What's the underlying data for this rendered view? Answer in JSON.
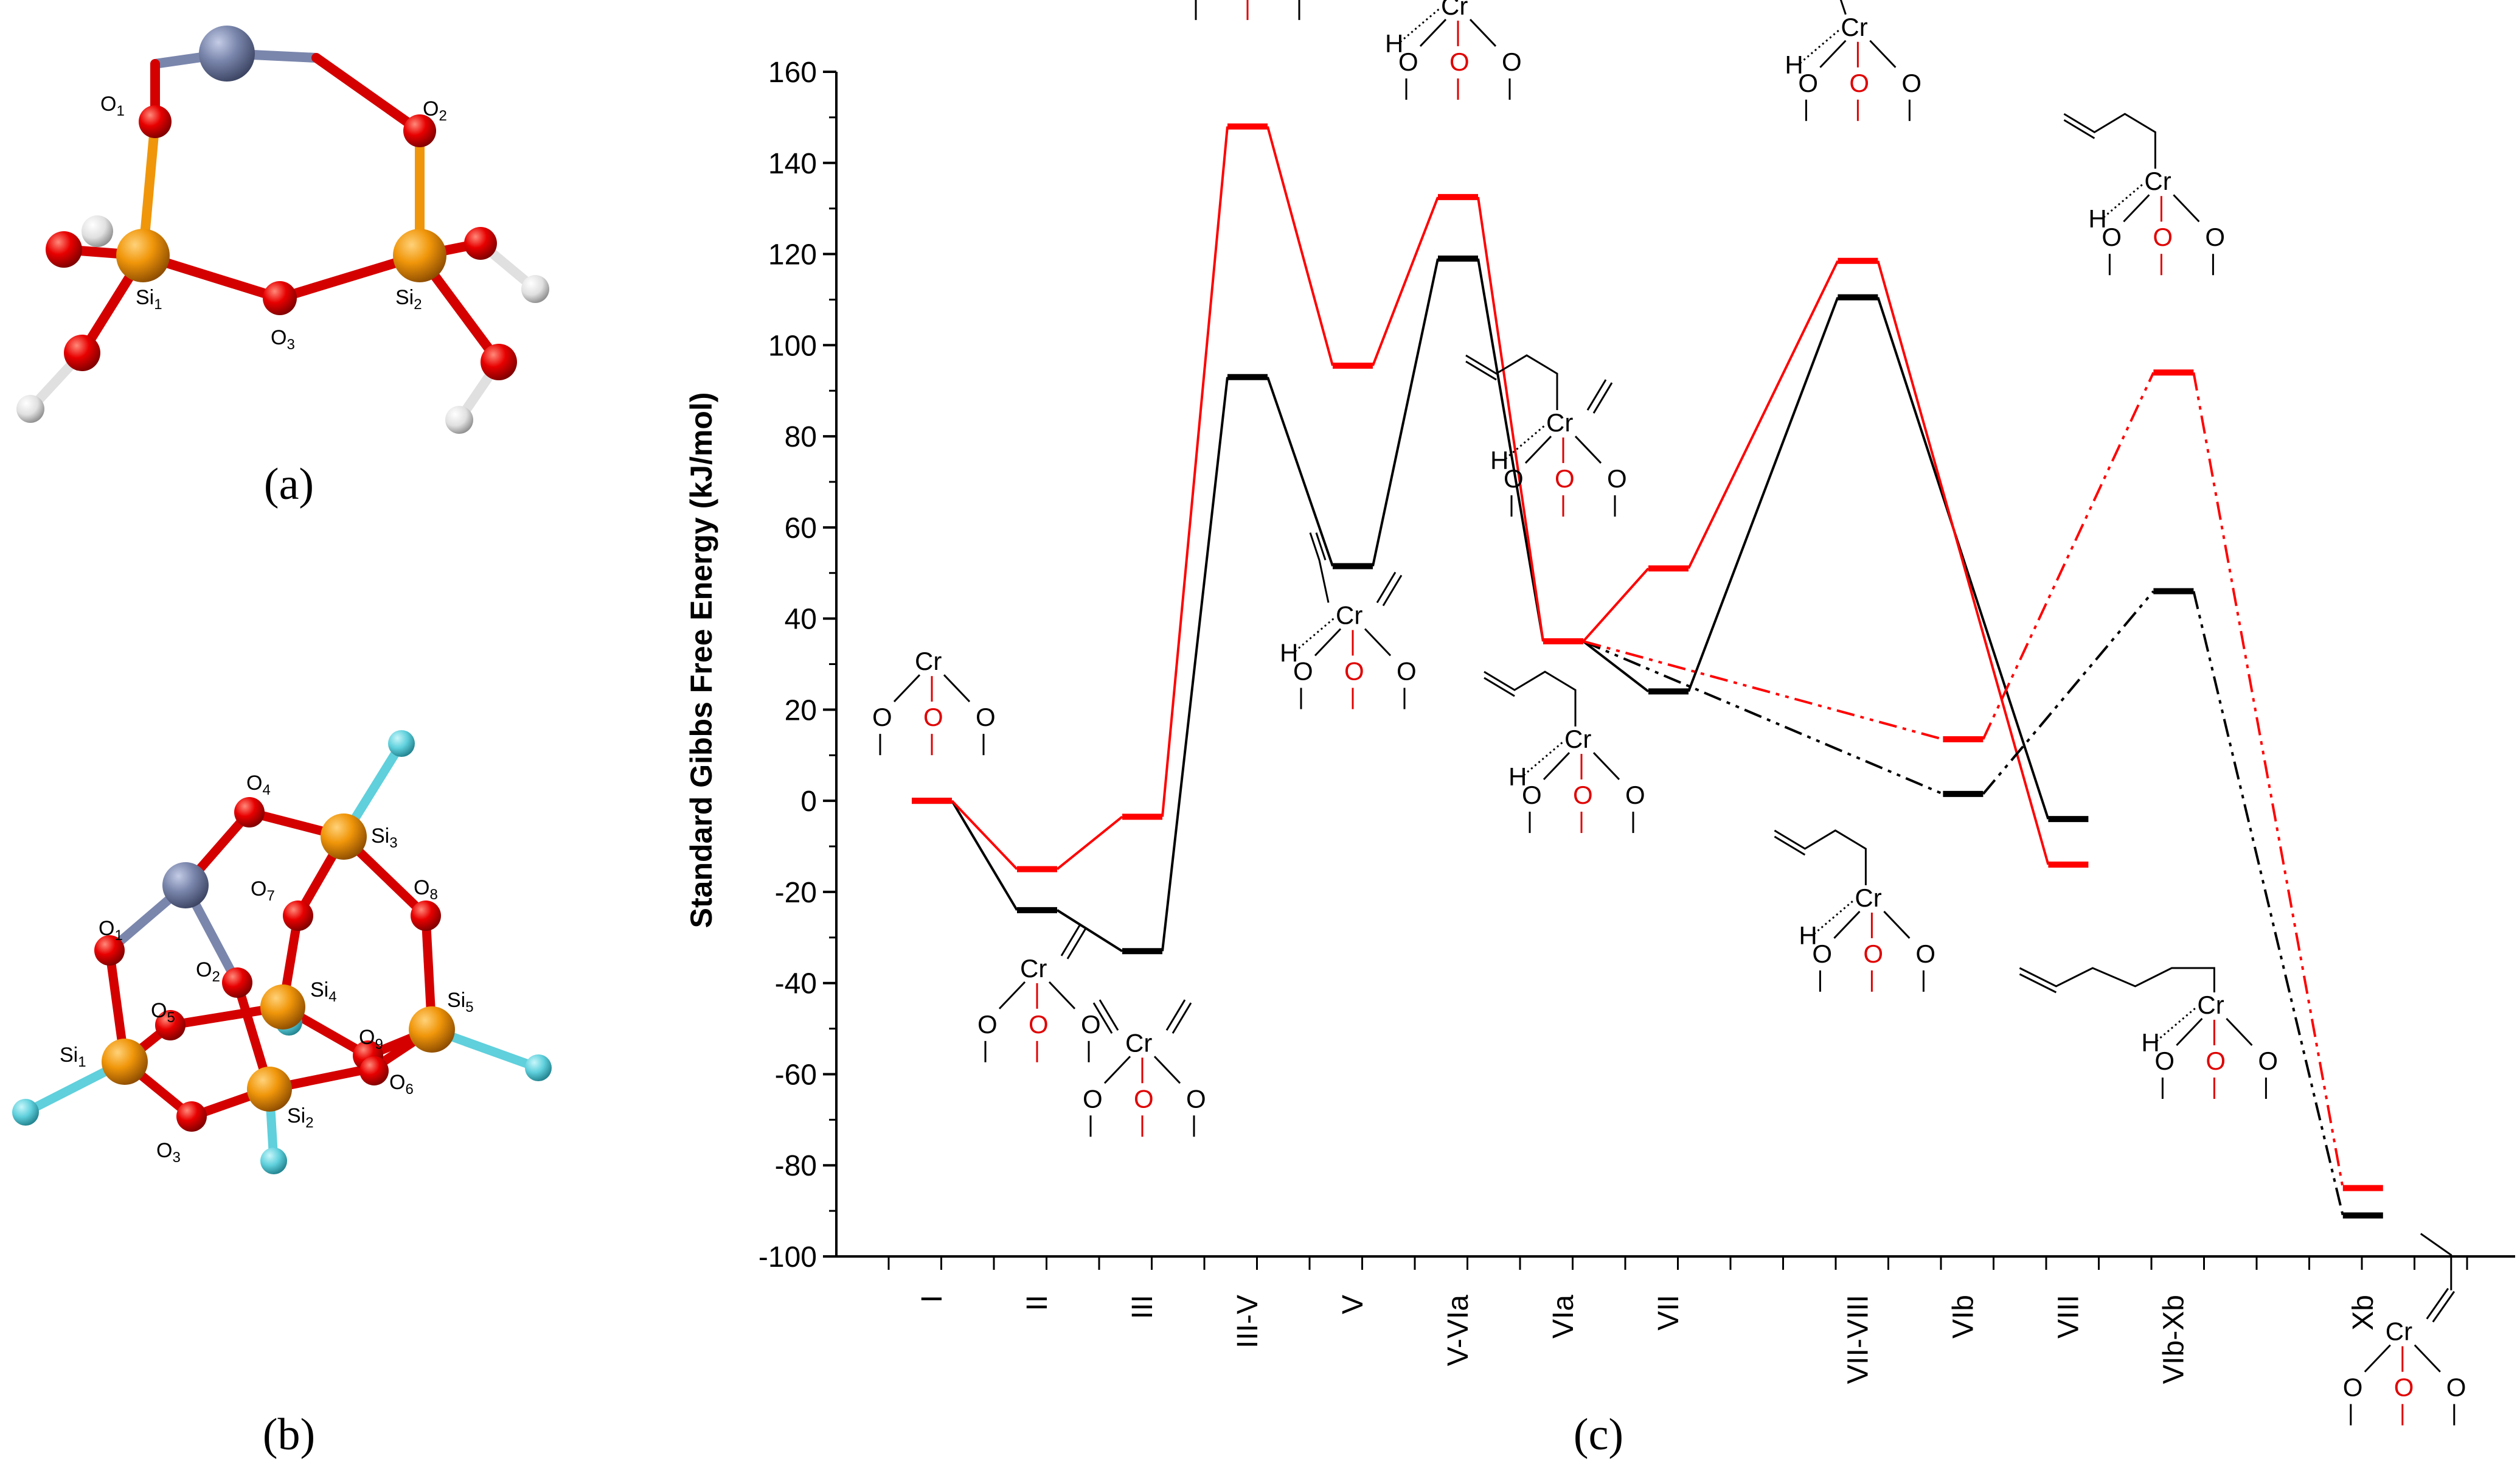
{
  "panels": {
    "a": "(a)",
    "b": "(b)",
    "c": "(c)"
  },
  "colors": {
    "red": "#ff0000",
    "black": "#000000",
    "oxygen": "#e80000",
    "silicon": "#f0960a",
    "metal": "#7a86ac",
    "hydrogen": "#e8e8e8",
    "fluorine": "#5fd0dc",
    "bond_red": "#d40000"
  },
  "molecule_a": {
    "atoms": [
      {
        "label": "O1",
        "base": "O",
        "sub": "1"
      },
      {
        "label": "O2",
        "base": "O",
        "sub": "2"
      },
      {
        "label": "O3",
        "base": "O",
        "sub": "3"
      },
      {
        "label": "Si1",
        "base": "Si",
        "sub": "1"
      },
      {
        "label": "Si2",
        "base": "Si",
        "sub": "2"
      }
    ]
  },
  "molecule_b": {
    "atoms": [
      {
        "label": "O1",
        "base": "O",
        "sub": "1"
      },
      {
        "label": "O2",
        "base": "O",
        "sub": "2"
      },
      {
        "label": "O3",
        "base": "O",
        "sub": "3"
      },
      {
        "label": "O4",
        "base": "O",
        "sub": "4"
      },
      {
        "label": "O5",
        "base": "O",
        "sub": "5"
      },
      {
        "label": "O6",
        "base": "O",
        "sub": "6"
      },
      {
        "label": "O7",
        "base": "O",
        "sub": "7"
      },
      {
        "label": "O8",
        "base": "O",
        "sub": "8"
      },
      {
        "label": "O9",
        "base": "O",
        "sub": "9"
      },
      {
        "label": "Si1",
        "base": "Si",
        "sub": "1"
      },
      {
        "label": "Si2",
        "base": "Si",
        "sub": "2"
      },
      {
        "label": "Si3",
        "base": "Si",
        "sub": "3"
      },
      {
        "label": "Si4",
        "base": "Si",
        "sub": "4"
      },
      {
        "label": "Si5",
        "base": "Si",
        "sub": "5"
      }
    ]
  },
  "structure_labels": {
    "cr": "Cr",
    "o": "O",
    "h": "H"
  },
  "chart_data": {
    "type": "line",
    "title": "",
    "ylabel": "Standard Gibbs Free Energy (kJ/mol)",
    "xlabel": "",
    "ylim": [
      -100,
      160
    ],
    "yticks": [
      -100,
      -80,
      -60,
      -40,
      -20,
      0,
      20,
      40,
      60,
      80,
      100,
      120,
      140,
      160
    ],
    "categories": [
      "I",
      "II",
      "III",
      "III-V",
      "V",
      "V-VIa",
      "VIa",
      "VII",
      "VII-VIII",
      "VIb",
      "VIII",
      "VIb-Xb",
      "Xb"
    ],
    "category_positions": [
      1,
      2,
      3,
      4,
      5,
      6,
      7,
      8,
      9.8,
      10.8,
      11.8,
      12.8,
      14.6
    ],
    "series": [
      {
        "name": "black solid",
        "color": "#000000",
        "dash": "solid",
        "points": [
          [
            "I",
            0
          ],
          [
            "II",
            -24
          ],
          [
            "III",
            -33
          ],
          [
            "III-V",
            93
          ],
          [
            "V",
            51.5
          ],
          [
            "V-VIa",
            119
          ],
          [
            "VIa",
            35
          ],
          [
            "VII",
            24
          ],
          [
            "VII-VIII",
            110.5
          ],
          [
            "VIII",
            -4
          ]
        ]
      },
      {
        "name": "red solid",
        "color": "#ff0000",
        "dash": "solid",
        "points": [
          [
            "I",
            0
          ],
          [
            "II",
            -15
          ],
          [
            "III",
            -3.5
          ],
          [
            "III-V",
            148
          ],
          [
            "V",
            95.5
          ],
          [
            "V-VIa",
            132.5
          ],
          [
            "VIa",
            35
          ],
          [
            "VII",
            51
          ],
          [
            "VII-VIII",
            118.5
          ],
          [
            "VIII",
            -14
          ]
        ]
      },
      {
        "name": "black dash-dot",
        "color": "#000000",
        "dash": "dashdot",
        "points": [
          [
            "VIa",
            35
          ],
          [
            "VIb",
            1.5
          ],
          [
            "VIb-Xb",
            46
          ],
          [
            "Xb",
            -91
          ]
        ]
      },
      {
        "name": "red dash-dot",
        "color": "#ff0000",
        "dash": "dashdot",
        "points": [
          [
            "VIa",
            35
          ],
          [
            "VIb",
            13.5
          ],
          [
            "VIb-Xb",
            94
          ],
          [
            "Xb",
            -85
          ]
        ]
      }
    ]
  }
}
